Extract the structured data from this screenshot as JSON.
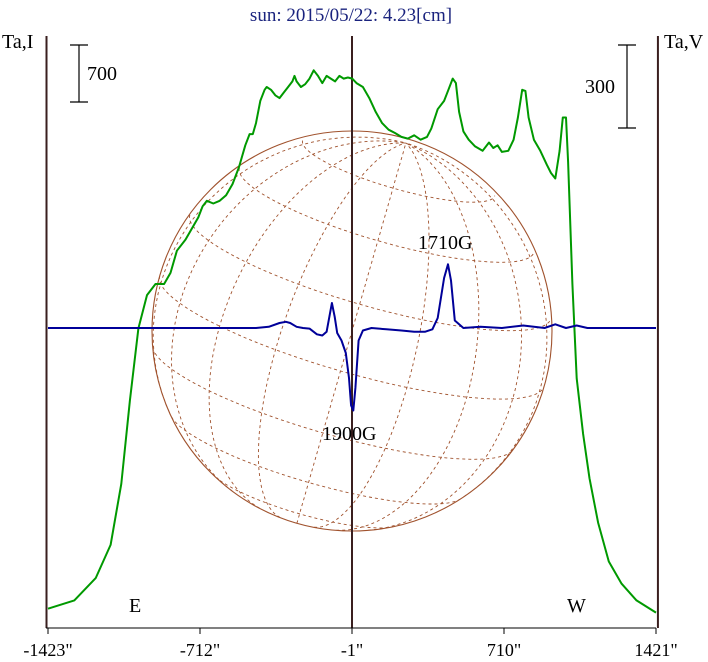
{
  "chart_data": {
    "type": "line",
    "title": "sun: 2015/05/22: 4.23[cm]",
    "left_axis_label": "Ta,I",
    "right_axis_label": "Ta,V",
    "left_scale_bar": "700",
    "right_scale_bar": "300",
    "x_tick_labels": [
      "-1423\"",
      "-712\"",
      "-1\"",
      "710\"",
      "1421\""
    ],
    "x_ticks": [
      -1423,
      -712,
      -1,
      710,
      1421
    ],
    "xlim": [
      -1423,
      1421
    ],
    "limb_markers": {
      "east": "E",
      "west": "W",
      "east_x": -1430,
      "west_x": 1430
    },
    "colors": {
      "intensity": "#009900",
      "polarization": "#000099",
      "disk": "#a0522d",
      "vlines": "#3a1f1f",
      "title": "#1a237e"
    },
    "series": [
      {
        "key": "I",
        "points": [
          [
            -1423,
            0.015
          ],
          [
            -1300,
            0.03
          ],
          [
            -1200,
            0.07
          ],
          [
            -1130,
            0.13
          ],
          [
            -1080,
            0.24
          ],
          [
            -1040,
            0.39
          ],
          [
            -1000,
            0.52
          ],
          [
            -960,
            0.58
          ],
          [
            -920,
            0.6
          ],
          [
            -880,
            0.6
          ],
          [
            -850,
            0.62
          ],
          [
            -820,
            0.66
          ],
          [
            -780,
            0.68
          ],
          [
            -750,
            0.7
          ],
          [
            -720,
            0.72
          ],
          [
            -700,
            0.74
          ],
          [
            -680,
            0.75
          ],
          [
            -650,
            0.745
          ],
          [
            -620,
            0.75
          ],
          [
            -590,
            0.76
          ],
          [
            -560,
            0.78
          ],
          [
            -530,
            0.81
          ],
          [
            -500,
            0.85
          ],
          [
            -480,
            0.87
          ],
          [
            -465,
            0.87
          ],
          [
            -450,
            0.89
          ],
          [
            -430,
            0.93
          ],
          [
            -410,
            0.95
          ],
          [
            -400,
            0.955
          ],
          [
            -380,
            0.95
          ],
          [
            -360,
            0.94
          ],
          [
            -340,
            0.935
          ],
          [
            -320,
            0.945
          ],
          [
            -300,
            0.955
          ],
          [
            -280,
            0.965
          ],
          [
            -270,
            0.975
          ],
          [
            -260,
            0.965
          ],
          [
            -240,
            0.955
          ],
          [
            -220,
            0.96
          ],
          [
            -200,
            0.97
          ],
          [
            -180,
            0.985
          ],
          [
            -160,
            0.975
          ],
          [
            -140,
            0.962
          ],
          [
            -120,
            0.975
          ],
          [
            -100,
            0.97
          ],
          [
            -80,
            0.965
          ],
          [
            -60,
            0.975
          ],
          [
            -40,
            0.97
          ],
          [
            -20,
            0.972
          ],
          [
            0,
            0.97
          ],
          [
            20,
            0.962
          ],
          [
            50,
            0.955
          ],
          [
            80,
            0.935
          ],
          [
            110,
            0.91
          ],
          [
            140,
            0.89
          ],
          [
            170,
            0.878
          ],
          [
            200,
            0.872
          ],
          [
            230,
            0.865
          ],
          [
            260,
            0.862
          ],
          [
            290,
            0.868
          ],
          [
            320,
            0.86
          ],
          [
            350,
            0.865
          ],
          [
            370,
            0.88
          ],
          [
            400,
            0.915
          ],
          [
            430,
            0.93
          ],
          [
            450,
            0.95
          ],
          [
            470,
            0.97
          ],
          [
            485,
            0.962
          ],
          [
            500,
            0.91
          ],
          [
            520,
            0.875
          ],
          [
            545,
            0.86
          ],
          [
            575,
            0.848
          ],
          [
            610,
            0.84
          ],
          [
            640,
            0.855
          ],
          [
            660,
            0.845
          ],
          [
            680,
            0.85
          ],
          [
            700,
            0.838
          ],
          [
            730,
            0.84
          ],
          [
            755,
            0.86
          ],
          [
            775,
            0.9
          ],
          [
            795,
            0.95
          ],
          [
            810,
            0.948
          ],
          [
            825,
            0.9
          ],
          [
            850,
            0.86
          ],
          [
            880,
            0.84
          ],
          [
            910,
            0.815
          ],
          [
            930,
            0.8
          ],
          [
            950,
            0.79
          ],
          [
            970,
            0.84
          ],
          [
            985,
            0.9
          ],
          [
            1000,
            0.9
          ],
          [
            1010,
            0.82
          ],
          [
            1030,
            0.6
          ],
          [
            1050,
            0.43
          ],
          [
            1080,
            0.33
          ],
          [
            1110,
            0.25
          ],
          [
            1150,
            0.17
          ],
          [
            1200,
            0.1
          ],
          [
            1260,
            0.06
          ],
          [
            1330,
            0.03
          ],
          [
            1421,
            0.008
          ]
        ]
      },
      {
        "key": "V",
        "points": [
          [
            -1423,
            0.0
          ],
          [
            -1200,
            0.0
          ],
          [
            -1000,
            0.0
          ],
          [
            -800,
            0.0
          ],
          [
            -600,
            0.0
          ],
          [
            -450,
            0.0
          ],
          [
            -390,
            0.01
          ],
          [
            -340,
            0.04
          ],
          [
            -310,
            0.05
          ],
          [
            -290,
            0.04
          ],
          [
            -260,
            0.01
          ],
          [
            -230,
            0.0
          ],
          [
            -200,
            -0.005
          ],
          [
            -165,
            -0.05
          ],
          [
            -140,
            -0.06
          ],
          [
            -120,
            -0.03
          ],
          [
            -95,
            0.2
          ],
          [
            -82,
            0.09
          ],
          [
            -70,
            -0.04
          ],
          [
            -50,
            -0.1
          ],
          [
            -30,
            -0.2
          ],
          [
            -15,
            -0.4
          ],
          [
            -5,
            -0.62
          ],
          [
            5,
            -0.66
          ],
          [
            15,
            -0.48
          ],
          [
            30,
            -0.1
          ],
          [
            50,
            -0.02
          ],
          [
            90,
            0.0
          ],
          [
            160,
            -0.01
          ],
          [
            230,
            -0.02
          ],
          [
            290,
            -0.03
          ],
          [
            340,
            -0.03
          ],
          [
            375,
            -0.01
          ],
          [
            400,
            0.08
          ],
          [
            430,
            0.4
          ],
          [
            448,
            0.51
          ],
          [
            462,
            0.38
          ],
          [
            480,
            0.06
          ],
          [
            520,
            0.0
          ],
          [
            600,
            0.01
          ],
          [
            700,
            0.0
          ],
          [
            800,
            0.02
          ],
          [
            850,
            0.01
          ],
          [
            900,
            0.0
          ],
          [
            950,
            0.03
          ],
          [
            1000,
            0.0
          ],
          [
            1050,
            0.02
          ],
          [
            1100,
            0.0
          ],
          [
            1200,
            0.0
          ],
          [
            1421,
            0.0
          ]
        ]
      }
    ],
    "annotations": [
      {
        "text": "1710G",
        "x": 448
      },
      {
        "text": "1900G",
        "x": -5
      }
    ]
  }
}
